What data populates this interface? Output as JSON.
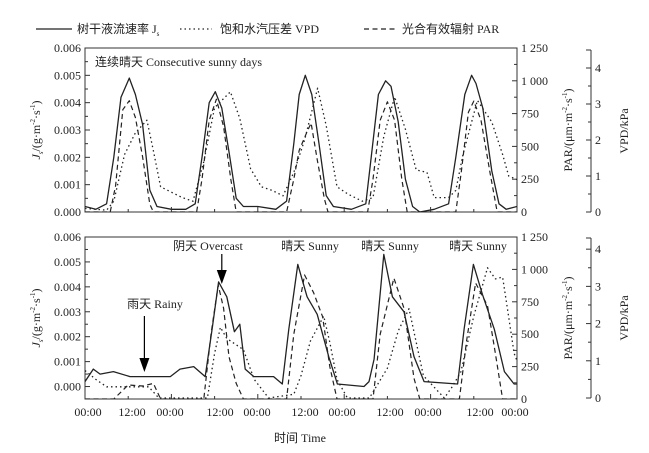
{
  "chart_data": {
    "type": "line",
    "legend": {
      "position": "top",
      "items": [
        {
          "key": "js",
          "label": "树干液流速率 J",
          "sub": "s",
          "style": "solid"
        },
        {
          "key": "vpd",
          "label": "饱和水汽压差 VPD",
          "style": "dotted"
        },
        {
          "key": "par",
          "label": "光合有效辐射 PAR",
          "style": "dashed"
        }
      ]
    },
    "xlabel": "时间 Time",
    "x_unit": "hours",
    "xlim": [
      0,
      120
    ],
    "x_tick_labels": [
      "00:00",
      "12:00",
      "00:00",
      "12:00",
      "00:00",
      "12:00",
      "00:00",
      "12:00",
      "00:00",
      "12:00",
      "00:00"
    ],
    "left_axis": {
      "label": "J",
      "label_sub": "s",
      "label_rest": "/(g·m",
      "label_exp1": "-2",
      "label_mid": "·s",
      "label_exp2": "-1",
      "label_end": ")",
      "ticks": [
        "0.000",
        "0.001",
        "0.002",
        "0.003",
        "0.004",
        "0.005",
        "0.006"
      ]
    },
    "right_axis_par": {
      "label": "PAR/(μm·m",
      "label_exp1": "-2",
      "label_mid": "·s",
      "label_exp2": "-1",
      "label_end": ")",
      "ticks": [
        "0",
        "250",
        "500",
        "750",
        "1 000",
        "1 250"
      ]
    },
    "right_axis_vpd": {
      "label": "VPD/kPa",
      "ticks": [
        "0",
        "1",
        "2",
        "3",
        "4"
      ]
    },
    "panels": [
      {
        "title": "连续晴天 Consecutive sunny days",
        "js_ylim": [
          0,
          0.006
        ],
        "par_ylim": [
          0,
          1250
        ],
        "vpd_ylim": [
          0,
          4.5
        ],
        "annotations": [],
        "series": {
          "js": [
            [
              0,
              0.0002
            ],
            [
              3,
              0.0001
            ],
            [
              6,
              0.0003
            ],
            [
              8,
              0.002
            ],
            [
              10,
              0.0042
            ],
            [
              12.3,
              0.0049
            ],
            [
              14,
              0.0043
            ],
            [
              16,
              0.0032
            ],
            [
              18,
              0.0008
            ],
            [
              20,
              0.0002
            ],
            [
              24,
              0.0001
            ],
            [
              28,
              0.0001
            ],
            [
              30.6,
              0.0003
            ],
            [
              32.5,
              0.002
            ],
            [
              34.5,
              0.004
            ],
            [
              36.2,
              0.0044
            ],
            [
              38,
              0.0038
            ],
            [
              40,
              0.0022
            ],
            [
              42,
              0.0005
            ],
            [
              44,
              0.0002
            ],
            [
              48,
              0.0002
            ],
            [
              53,
              0.0001
            ],
            [
              56,
              0.0004
            ],
            [
              58,
              0.0025
            ],
            [
              59.5,
              0.0043
            ],
            [
              61.2,
              0.005
            ],
            [
              63,
              0.0043
            ],
            [
              65,
              0.0025
            ],
            [
              67,
              0.0006
            ],
            [
              69,
              0.0002
            ],
            [
              74,
              0.0001
            ],
            [
              78,
              0.0003
            ],
            [
              79.5,
              0.002
            ],
            [
              81.5,
              0.0043
            ],
            [
              83.5,
              0.0048
            ],
            [
              85,
              0.0046
            ],
            [
              87,
              0.0033
            ],
            [
              89,
              0.0012
            ],
            [
              91,
              0.0002
            ],
            [
              93,
              0.0
            ],
            [
              97,
              0.0001
            ],
            [
              101,
              0.0003
            ],
            [
              103,
              0.002
            ],
            [
              105.5,
              0.0043
            ],
            [
              107.4,
              0.005
            ],
            [
              108.6,
              0.0047
            ],
            [
              110.5,
              0.0038
            ],
            [
              113,
              0.0015
            ],
            [
              115,
              0.0003
            ],
            [
              117,
              0.0001
            ],
            [
              120,
              0.0002
            ]
          ],
          "par": [
            [
              0,
              0
            ],
            [
              7,
              0
            ],
            [
              8.5,
              200
            ],
            [
              10.5,
              780
            ],
            [
              12.3,
              848
            ],
            [
              14,
              720
            ],
            [
              16,
              420
            ],
            [
              18,
              60
            ],
            [
              19,
              0
            ],
            [
              31,
              0
            ],
            [
              32.5,
              250
            ],
            [
              34.5,
              700
            ],
            [
              36.5,
              860
            ],
            [
              38.5,
              650
            ],
            [
              40.5,
              250
            ],
            [
              42,
              0
            ],
            [
              56,
              0
            ],
            [
              58,
              250
            ],
            [
              59.5,
              470
            ],
            [
              61.5,
              600
            ],
            [
              62.8,
              678
            ],
            [
              64.5,
              400
            ],
            [
              66.5,
              100
            ],
            [
              67.5,
              0
            ],
            [
              78.5,
              0
            ],
            [
              80,
              250
            ],
            [
              82,
              700
            ],
            [
              84,
              840
            ],
            [
              86,
              700
            ],
            [
              88,
              250
            ],
            [
              89.5,
              0
            ],
            [
              103,
              0
            ],
            [
              104.5,
              300
            ],
            [
              106.5,
              760
            ],
            [
              108,
              845
            ],
            [
              110,
              700
            ],
            [
              112.5,
              300
            ],
            [
              114.5,
              0
            ],
            [
              120,
              0
            ]
          ],
          "vpd": [
            [
              0,
              0.1
            ],
            [
              6,
              0.05
            ],
            [
              8,
              0.3
            ],
            [
              11,
              1.6
            ],
            [
              14,
              2.2
            ],
            [
              17.2,
              2.55
            ],
            [
              19,
              1.7
            ],
            [
              21,
              0.7
            ],
            [
              24,
              0.55
            ],
            [
              27,
              0.4
            ],
            [
              30,
              0.3
            ],
            [
              33,
              1.4
            ],
            [
              36,
              2.9
            ],
            [
              40.4,
              3.34
            ],
            [
              43,
              2.6
            ],
            [
              46,
              1.2
            ],
            [
              49,
              0.7
            ],
            [
              52,
              0.6
            ],
            [
              55,
              0.45
            ],
            [
              58,
              1.1
            ],
            [
              61,
              2.0
            ],
            [
              64.6,
              3.44
            ],
            [
              67,
              2.4
            ],
            [
              70,
              0.7
            ],
            [
              73,
              0.5
            ],
            [
              77,
              0.3
            ],
            [
              80,
              0.4
            ],
            [
              83,
              2.1
            ],
            [
              86,
              3.2
            ],
            [
              89,
              2.3
            ],
            [
              92,
              1.17
            ],
            [
              95,
              1.1
            ],
            [
              97,
              0.4
            ],
            [
              101,
              0.4
            ],
            [
              103,
              0.6
            ],
            [
              105,
              1.6
            ],
            [
              109,
              3.1
            ],
            [
              113,
              2.5
            ],
            [
              116,
              1.6
            ],
            [
              117.7,
              1.0
            ],
            [
              120,
              0.9
            ]
          ]
        }
      },
      {
        "title": "",
        "js_ylim": [
          -0.0005,
          0.006
        ],
        "par_ylim": [
          0,
          1250
        ],
        "vpd_ylim": [
          0,
          4.3
        ],
        "annotations": [
          {
            "label": "雨天 Rainy",
            "arrow_to_hour": 16.5
          },
          {
            "label": "阴天 Overcast",
            "arrow_to_hour": 38
          },
          {
            "label": "晴天 Sunny"
          },
          {
            "label": "晴天 Sunny"
          },
          {
            "label": "晴天 Sunny"
          }
        ],
        "series": {
          "js": [
            [
              0,
              0.0002
            ],
            [
              2.3,
              0.0007
            ],
            [
              4.2,
              0.0005
            ],
            [
              7.9,
              0.0006
            ],
            [
              12.5,
              0.0004
            ],
            [
              19,
              0.0004
            ],
            [
              23.7,
              0.0004
            ],
            [
              26.4,
              0.0007
            ],
            [
              30.2,
              0.0008
            ],
            [
              33.4,
              0.0004
            ],
            [
              35.3,
              0.0023
            ],
            [
              37.1,
              0.0042
            ],
            [
              39.4,
              0.0036
            ],
            [
              41.5,
              0.0022
            ],
            [
              43,
              0.0025
            ],
            [
              44.5,
              0.0007
            ],
            [
              46.9,
              0.0004
            ],
            [
              52.4,
              0.0004
            ],
            [
              54.8,
              0.0001
            ],
            [
              56.6,
              0.0023
            ],
            [
              59.1,
              0.0049
            ],
            [
              61.7,
              0.0036
            ],
            [
              64.5,
              0.0029
            ],
            [
              67.7,
              0.0012
            ],
            [
              70.1,
              0.0001
            ],
            [
              77.5,
              0.0
            ],
            [
              78.9,
              0.0002
            ],
            [
              80.3,
              0.0011
            ],
            [
              83,
              0.0053
            ],
            [
              85.4,
              0.0036
            ],
            [
              88.6,
              0.003
            ],
            [
              91.4,
              0.0012
            ],
            [
              94.2,
              0.0002
            ],
            [
              103.5,
              0.0001
            ],
            [
              105.3,
              0.0023
            ],
            [
              107.9,
              0.0049
            ],
            [
              110.4,
              0.0037
            ],
            [
              113.7,
              0.0023
            ],
            [
              116.5,
              0.0006
            ],
            [
              119.2,
              0.0001
            ],
            [
              120,
              0.0001
            ]
          ],
          "par": [
            [
              0,
              0
            ],
            [
              8,
              0
            ],
            [
              12,
              108
            ],
            [
              16,
              100
            ],
            [
              19,
              120
            ],
            [
              21,
              0
            ],
            [
              33,
              0
            ],
            [
              35,
              500
            ],
            [
              37,
              880
            ],
            [
              38.5,
              700
            ],
            [
              40,
              326
            ],
            [
              42,
              120
            ],
            [
              44,
              0
            ],
            [
              56,
              0
            ],
            [
              58,
              500
            ],
            [
              61,
              957
            ],
            [
              63.5,
              820
            ],
            [
              66,
              635
            ],
            [
              68,
              250
            ],
            [
              70,
              0
            ],
            [
              80,
              0
            ],
            [
              82,
              500
            ],
            [
              85.8,
              933
            ],
            [
              88.6,
              700
            ],
            [
              91.4,
              160
            ],
            [
              93,
              0
            ],
            [
              104,
              0
            ],
            [
              106,
              450
            ],
            [
              108.5,
              895
            ],
            [
              111.8,
              720
            ],
            [
              114,
              350
            ],
            [
              116,
              0
            ],
            [
              120,
              0
            ]
          ],
          "vpd": [
            [
              0,
              0.74
            ],
            [
              3,
              0.5
            ],
            [
              6,
              0.3
            ],
            [
              12,
              0.3
            ],
            [
              17.7,
              0.3
            ],
            [
              20.5,
              0
            ],
            [
              34,
              0
            ],
            [
              36,
              1.2
            ],
            [
              37.6,
              1.9
            ],
            [
              39.4,
              1.6
            ],
            [
              44,
              1.3
            ],
            [
              47,
              0.5
            ],
            [
              51,
              0
            ],
            [
              58,
              0.1
            ],
            [
              60,
              0.6
            ],
            [
              62.6,
              1.53
            ],
            [
              66.3,
              2.2
            ],
            [
              68,
              1.5
            ],
            [
              70,
              0.5
            ],
            [
              72.9,
              0
            ],
            [
              79,
              0
            ],
            [
              84,
              0.8
            ],
            [
              87,
              1.8
            ],
            [
              90,
              2.4
            ],
            [
              92,
              1.5
            ],
            [
              94,
              0.6
            ],
            [
              99.8,
              0
            ],
            [
              102,
              0.3
            ],
            [
              104.4,
              0.7
            ],
            [
              108,
              2.2
            ],
            [
              111.8,
              3.5
            ],
            [
              114,
              3.2
            ],
            [
              116,
              3.25
            ],
            [
              117.5,
              2.3
            ],
            [
              119.2,
              1.2
            ],
            [
              120,
              1.0
            ]
          ]
        }
      }
    ]
  }
}
